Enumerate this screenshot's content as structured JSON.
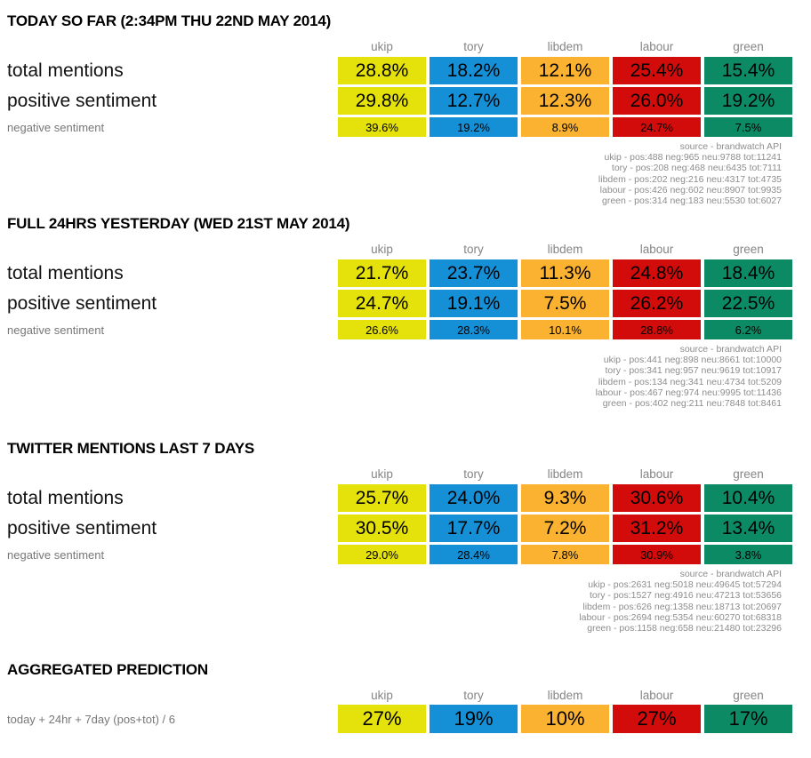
{
  "parties": [
    "ukip",
    "tory",
    "libdem",
    "labour",
    "green"
  ],
  "party_colors": {
    "ukip": "#e5e10a",
    "tory": "#1590d7",
    "libdem": "#fbb231",
    "labour": "#d20b0b",
    "green": "#0c8a63"
  },
  "row_labels": {
    "total": "total mentions",
    "positive": "positive sentiment",
    "negative": "negative sentiment"
  },
  "source_label": "source - brandwatch API",
  "sections": [
    {
      "title": "TODAY SO FAR (2:34PM THU 22ND MAY 2014)",
      "total_mentions": [
        "28.8%",
        "18.2%",
        "12.1%",
        "25.4%",
        "15.4%"
      ],
      "positive_sentiment": [
        "29.8%",
        "12.7%",
        "12.3%",
        "26.0%",
        "19.2%"
      ],
      "negative_sentiment": [
        "39.6%",
        "19.2%",
        "8.9%",
        "24.7%",
        "7.5%"
      ],
      "source_lines": [
        "ukip - pos:488 neg:965 neu:9788 tot:11241",
        "tory - pos:208 neg:468 neu:6435 tot:7111",
        "libdem - pos:202 neg:216 neu:4317 tot:4735",
        "labour - pos:426 neg:602 neu:8907 tot:9935",
        "green - pos:314 neg:183 neu:5530 tot:6027"
      ]
    },
    {
      "title": "FULL 24HRS YESTERDAY (WED 21ST MAY 2014)",
      "total_mentions": [
        "21.7%",
        "23.7%",
        "11.3%",
        "24.8%",
        "18.4%"
      ],
      "positive_sentiment": [
        "24.7%",
        "19.1%",
        "7.5%",
        "26.2%",
        "22.5%"
      ],
      "negative_sentiment": [
        "26.6%",
        "28.3%",
        "10.1%",
        "28.8%",
        "6.2%"
      ],
      "source_lines": [
        "ukip - pos:441 neg:898 neu:8661 tot:10000",
        "tory - pos:341 neg:957 neu:9619 tot:10917",
        "libdem - pos:134 neg:341 neu:4734 tot:5209",
        "labour - pos:467 neg:974 neu:9995 tot:11436",
        "green - pos:402 neg:211 neu:7848 tot:8461"
      ]
    },
    {
      "title": "TWITTER MENTIONS LAST 7 DAYS",
      "total_mentions": [
        "25.7%",
        "24.0%",
        "9.3%",
        "30.6%",
        "10.4%"
      ],
      "positive_sentiment": [
        "30.5%",
        "17.7%",
        "7.2%",
        "31.2%",
        "13.4%"
      ],
      "negative_sentiment": [
        "29.0%",
        "28.4%",
        "7.8%",
        "30.9%",
        "3.8%"
      ],
      "source_lines": [
        "ukip - pos:2631 neg:5018 neu:49645 tot:57294",
        "tory - pos:1527 neg:4916 neu:47213 tot:53656",
        "libdem - pos:626 neg:1358 neu:18713 tot:20697",
        "labour - pos:2694 neg:5354 neu:60270 tot:68318",
        "green - pos:1158 neg:658 neu:21480 tot:23296"
      ]
    }
  ],
  "aggregated": {
    "title": "AGGREGATED PREDICTION",
    "formula_label": "today + 24hr + 7day (pos+tot) / 6",
    "values": [
      "27%",
      "19%",
      "10%",
      "27%",
      "17%"
    ]
  },
  "chart_data": [
    {
      "type": "table",
      "title": "TODAY SO FAR (2:34PM THU 22ND MAY 2014)",
      "categories": [
        "ukip",
        "tory",
        "libdem",
        "labour",
        "green"
      ],
      "series": [
        {
          "name": "total mentions",
          "values": [
            28.8,
            18.2,
            12.1,
            25.4,
            15.4
          ]
        },
        {
          "name": "positive sentiment",
          "values": [
            29.8,
            12.7,
            12.3,
            26.0,
            19.2
          ]
        },
        {
          "name": "negative sentiment",
          "values": [
            39.6,
            19.2,
            8.9,
            24.7,
            7.5
          ]
        }
      ],
      "unit": "%",
      "source": "brandwatch API",
      "raw_counts": [
        {
          "party": "ukip",
          "pos": 488,
          "neg": 965,
          "neu": 9788,
          "tot": 11241
        },
        {
          "party": "tory",
          "pos": 208,
          "neg": 468,
          "neu": 6435,
          "tot": 7111
        },
        {
          "party": "libdem",
          "pos": 202,
          "neg": 216,
          "neu": 4317,
          "tot": 4735
        },
        {
          "party": "labour",
          "pos": 426,
          "neg": 602,
          "neu": 8907,
          "tot": 9935
        },
        {
          "party": "green",
          "pos": 314,
          "neg": 183,
          "neu": 5530,
          "tot": 6027
        }
      ]
    },
    {
      "type": "table",
      "title": "FULL 24HRS YESTERDAY (WED 21ST MAY 2014)",
      "categories": [
        "ukip",
        "tory",
        "libdem",
        "labour",
        "green"
      ],
      "series": [
        {
          "name": "total mentions",
          "values": [
            21.7,
            23.7,
            11.3,
            24.8,
            18.4
          ]
        },
        {
          "name": "positive sentiment",
          "values": [
            24.7,
            19.1,
            7.5,
            26.2,
            22.5
          ]
        },
        {
          "name": "negative sentiment",
          "values": [
            26.6,
            28.3,
            10.1,
            28.8,
            6.2
          ]
        }
      ],
      "unit": "%",
      "source": "brandwatch API",
      "raw_counts": [
        {
          "party": "ukip",
          "pos": 441,
          "neg": 898,
          "neu": 8661,
          "tot": 10000
        },
        {
          "party": "tory",
          "pos": 341,
          "neg": 957,
          "neu": 9619,
          "tot": 10917
        },
        {
          "party": "libdem",
          "pos": 134,
          "neg": 341,
          "neu": 4734,
          "tot": 5209
        },
        {
          "party": "labour",
          "pos": 467,
          "neg": 974,
          "neu": 9995,
          "tot": 11436
        },
        {
          "party": "green",
          "pos": 402,
          "neg": 211,
          "neu": 7848,
          "tot": 8461
        }
      ]
    },
    {
      "type": "table",
      "title": "TWITTER MENTIONS LAST 7 DAYS",
      "categories": [
        "ukip",
        "tory",
        "libdem",
        "labour",
        "green"
      ],
      "series": [
        {
          "name": "total mentions",
          "values": [
            25.7,
            24.0,
            9.3,
            30.6,
            10.4
          ]
        },
        {
          "name": "positive sentiment",
          "values": [
            30.5,
            17.7,
            7.2,
            31.2,
            13.4
          ]
        },
        {
          "name": "negative sentiment",
          "values": [
            29.0,
            28.4,
            7.8,
            30.9,
            3.8
          ]
        }
      ],
      "unit": "%",
      "source": "brandwatch API",
      "raw_counts": [
        {
          "party": "ukip",
          "pos": 2631,
          "neg": 5018,
          "neu": 49645,
          "tot": 57294
        },
        {
          "party": "tory",
          "pos": 1527,
          "neg": 4916,
          "neu": 47213,
          "tot": 53656
        },
        {
          "party": "libdem",
          "pos": 626,
          "neg": 1358,
          "neu": 18713,
          "tot": 20697
        },
        {
          "party": "labour",
          "pos": 2694,
          "neg": 5354,
          "neu": 60270,
          "tot": 68318
        },
        {
          "party": "green",
          "pos": 1158,
          "neg": 658,
          "neu": 21480,
          "tot": 23296
        }
      ]
    },
    {
      "type": "table",
      "title": "AGGREGATED PREDICTION",
      "categories": [
        "ukip",
        "tory",
        "libdem",
        "labour",
        "green"
      ],
      "series": [
        {
          "name": "today + 24hr + 7day (pos+tot) / 6",
          "values": [
            27,
            19,
            10,
            27,
            17
          ]
        }
      ],
      "unit": "%"
    }
  ]
}
